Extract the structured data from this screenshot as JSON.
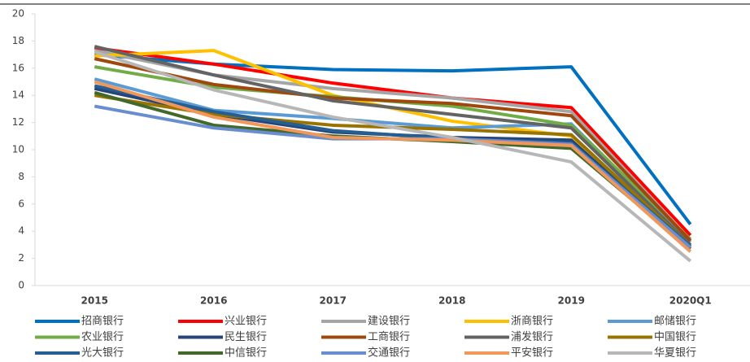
{
  "chart_data": {
    "type": "line",
    "categories": [
      "2015",
      "2016",
      "2017",
      "2018",
      "2019",
      "2020Q1"
    ],
    "ylim": [
      0,
      20
    ],
    "yticks": [
      0,
      2,
      4,
      6,
      8,
      10,
      12,
      14,
      16,
      18,
      20
    ],
    "legend": "bottom",
    "series": [
      {
        "name": "招商银行",
        "color": "#0070c0",
        "values": [
          17.0,
          16.3,
          15.9,
          15.8,
          16.1,
          4.5
        ]
      },
      {
        "name": "兴业银行",
        "color": "#ff0000",
        "values": [
          17.5,
          16.3,
          14.9,
          13.8,
          13.1,
          3.7
        ]
      },
      {
        "name": "建设银行",
        "color": "#a5a5a5",
        "values": [
          17.3,
          15.5,
          14.5,
          13.8,
          12.8,
          3.3
        ]
      },
      {
        "name": "浙商银行",
        "color": "#ffc000",
        "values": [
          16.9,
          17.3,
          14.0,
          12.1,
          11.0,
          3.0
        ]
      },
      {
        "name": "邮储银行",
        "color": "#5b9bd5",
        "values": [
          15.2,
          12.9,
          12.3,
          11.6,
          11.9,
          3.2
        ]
      },
      {
        "name": "农业银行",
        "color": "#70ad47",
        "values": [
          16.1,
          14.6,
          13.9,
          13.2,
          11.8,
          3.4
        ]
      },
      {
        "name": "民生银行",
        "color": "#264478",
        "values": [
          14.5,
          12.6,
          11.3,
          10.9,
          10.7,
          2.8
        ]
      },
      {
        "name": "工商银行",
        "color": "#9e480e",
        "values": [
          16.7,
          14.8,
          13.8,
          13.4,
          12.5,
          3.3
        ]
      },
      {
        "name": "浦发银行",
        "color": "#636363",
        "values": [
          17.6,
          15.5,
          13.6,
          12.6,
          11.6,
          3.0
        ]
      },
      {
        "name": "中国银行",
        "color": "#997300",
        "values": [
          14.0,
          12.6,
          11.8,
          11.5,
          11.1,
          2.9
        ]
      },
      {
        "name": "光大银行",
        "color": "#255e91",
        "values": [
          14.7,
          12.8,
          11.4,
          10.8,
          10.5,
          2.9
        ]
      },
      {
        "name": "中信银行",
        "color": "#43682b",
        "values": [
          14.2,
          11.8,
          11.0,
          10.6,
          10.1,
          2.7
        ]
      },
      {
        "name": "交通银行",
        "color": "#698ed0",
        "values": [
          13.2,
          11.6,
          10.8,
          10.8,
          10.4,
          2.8
        ]
      },
      {
        "name": "平安银行",
        "color": "#f1975a",
        "values": [
          15.0,
          12.4,
          10.9,
          10.7,
          10.3,
          2.5
        ]
      },
      {
        "name": "华夏银行",
        "color": "#b7b7b7",
        "values": [
          17.2,
          14.4,
          12.4,
          10.9,
          9.1,
          1.8
        ]
      }
    ]
  }
}
